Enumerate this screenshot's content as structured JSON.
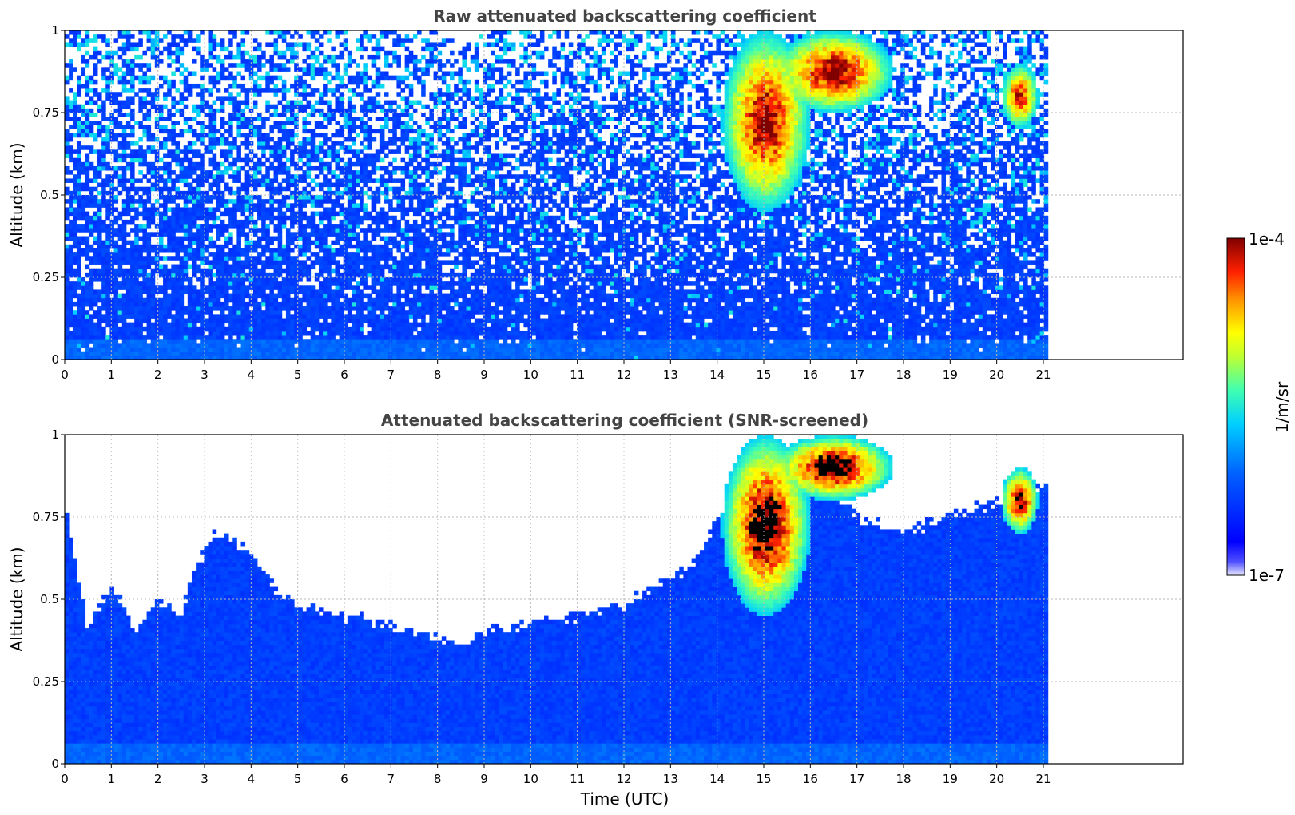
{
  "chart_data": [
    {
      "type": "heatmap",
      "title": "Raw attenuated backscattering coefficient",
      "xlabel": "",
      "ylabel": "Altitude (km)",
      "xlim": [
        0,
        24
      ],
      "ylim": [
        0,
        1
      ],
      "x_ticks": [
        "0",
        "1",
        "2",
        "3",
        "4",
        "5",
        "6",
        "7",
        "8",
        "9",
        "10",
        "11",
        "12",
        "13",
        "14",
        "15",
        "16",
        "17",
        "18",
        "19",
        "20",
        "21"
      ],
      "y_ticks": [
        "0",
        "0.25",
        "0.5",
        "0.75",
        "1"
      ],
      "data_end_x": 21.1,
      "grid": true,
      "cells": [
        [
          0.0,
          0.22,
          0.3
        ],
        [
          0.0,
          0.22,
          0.3
        ],
        [
          0.0,
          0.22,
          0.3
        ],
        [
          0.0,
          0.22,
          0.3
        ],
        [
          0.0,
          0.22,
          0.3
        ]
      ],
      "features": [
        {
          "name": "cloud",
          "x": [
            14.1,
            16.0
          ],
          "y": [
            0.45,
            1.0
          ],
          "value": 0.95
        },
        {
          "name": "cloud",
          "x": [
            15.2,
            17.8
          ],
          "y": [
            0.75,
            1.0
          ],
          "value": 0.95
        },
        {
          "name": "cloud",
          "x": [
            20.1,
            20.9
          ],
          "y": [
            0.7,
            0.9
          ],
          "value": 0.9
        }
      ],
      "screened": false
    },
    {
      "type": "heatmap",
      "title": "Attenuated backscattering coefficient (SNR-screened)",
      "xlabel": "Time (UTC)",
      "ylabel": "Altitude (km)",
      "xlim": [
        0,
        24
      ],
      "ylim": [
        0,
        1
      ],
      "x_ticks": [
        "0",
        "1",
        "2",
        "3",
        "4",
        "5",
        "6",
        "7",
        "8",
        "9",
        "10",
        "11",
        "12",
        "13",
        "14",
        "15",
        "16",
        "17",
        "18",
        "19",
        "20",
        "21"
      ],
      "y_ticks": [
        "0",
        "0.25",
        "0.5",
        "0.75",
        "1"
      ],
      "data_end_x": 21.1,
      "grid": true,
      "boundary": [
        [
          0,
          0.8
        ],
        [
          0.5,
          0.4
        ],
        [
          1,
          0.55
        ],
        [
          1.5,
          0.4
        ],
        [
          2,
          0.5
        ],
        [
          2.5,
          0.45
        ],
        [
          2.8,
          0.6
        ],
        [
          3.2,
          0.7
        ],
        [
          4,
          0.65
        ],
        [
          4.4,
          0.55
        ],
        [
          5,
          0.48
        ],
        [
          6,
          0.45
        ],
        [
          7,
          0.42
        ],
        [
          8,
          0.38
        ],
        [
          8.6,
          0.36
        ],
        [
          9,
          0.4
        ],
        [
          10,
          0.43
        ],
        [
          11,
          0.45
        ],
        [
          12,
          0.48
        ],
        [
          12.8,
          0.55
        ],
        [
          13.5,
          0.6
        ],
        [
          14,
          0.75
        ],
        [
          15,
          0.9
        ],
        [
          16,
          0.9
        ],
        [
          17,
          0.75
        ],
        [
          18,
          0.7
        ],
        [
          19,
          0.75
        ],
        [
          20,
          0.8
        ],
        [
          21,
          0.85
        ],
        [
          21.1,
          0.85
        ]
      ],
      "features": [
        {
          "name": "cloud",
          "x": [
            14.1,
            16.0
          ],
          "y": [
            0.45,
            1.0
          ],
          "value": 1.0
        },
        {
          "name": "cloud",
          "x": [
            15.2,
            17.8
          ],
          "y": [
            0.8,
            1.0
          ],
          "value": 1.0
        },
        {
          "name": "cloud",
          "x": [
            20.1,
            20.9
          ],
          "y": [
            0.7,
            0.9
          ],
          "value": 0.95
        }
      ],
      "screened": true
    }
  ],
  "colorbar": {
    "label": "1/m/sr",
    "max_label": "1e-4",
    "min_label": "1e-7",
    "colormap": "jet"
  }
}
